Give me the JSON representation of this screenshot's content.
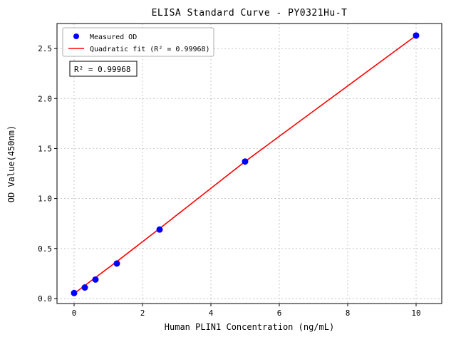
{
  "chart_data": {
    "type": "scatter",
    "title": "ELISA Standard Curve - PY0321Hu-T",
    "xlabel": "Human PLIN1 Concentration (ng/mL)",
    "ylabel": "OD Value(450nm)",
    "xlim": [
      -0.5,
      10.75
    ],
    "ylim": [
      -0.05,
      2.75
    ],
    "xticks": [
      0,
      2,
      4,
      6,
      8,
      10
    ],
    "xtick_labels": [
      "0",
      "2",
      "4",
      "6",
      "8",
      "10"
    ],
    "yticks": [
      0.0,
      0.5,
      1.0,
      1.5,
      2.0,
      2.5
    ],
    "ytick_labels": [
      "0.0",
      "0.5",
      "1.0",
      "1.5",
      "2.0",
      "2.5"
    ],
    "grid": true,
    "legend_position": "upper left",
    "series": [
      {
        "name": "Quadratic fit (R² = 0.99968)",
        "type": "line",
        "color": "#ff0000",
        "x": [
          0,
          0.625,
          1.25,
          2.5,
          5,
          7.5,
          10
        ],
        "y": [
          0.05,
          0.21,
          0.37,
          0.7,
          1.37,
          2.0,
          2.63
        ]
      },
      {
        "name": "Measured OD",
        "type": "scatter",
        "color": "#0000ff",
        "x": [
          0,
          0.313,
          0.625,
          1.25,
          2.5,
          5,
          10
        ],
        "y": [
          0.055,
          0.11,
          0.19,
          0.35,
          0.69,
          1.37,
          2.63
        ]
      }
    ],
    "legend": [
      {
        "label": "Measured OD",
        "marker": "dot",
        "color": "#0000ff"
      },
      {
        "label": "Quadratic fit (R² = 0.99968)",
        "marker": "line",
        "color": "#ff0000"
      }
    ],
    "annotation": {
      "text": "R² = 0.99968"
    }
  }
}
